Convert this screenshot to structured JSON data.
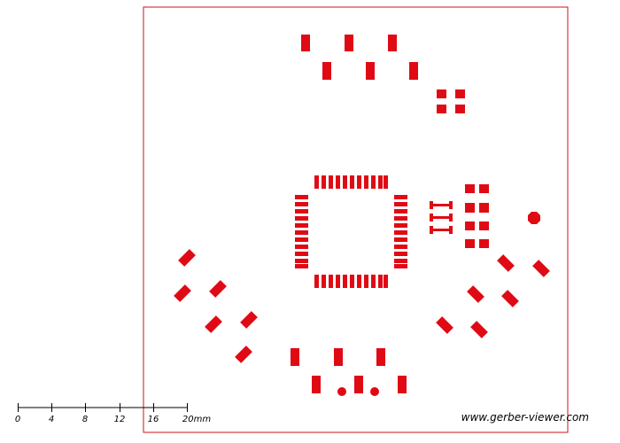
{
  "viewer": {
    "pad_color": "#e00a14",
    "outline_color": "#d0101a",
    "background": "#ffffff"
  },
  "scale_bar": {
    "labels": [
      "0",
      "4",
      "8",
      "12",
      "16",
      "20mm"
    ]
  },
  "watermark": "www.gerber-viewer.com"
}
